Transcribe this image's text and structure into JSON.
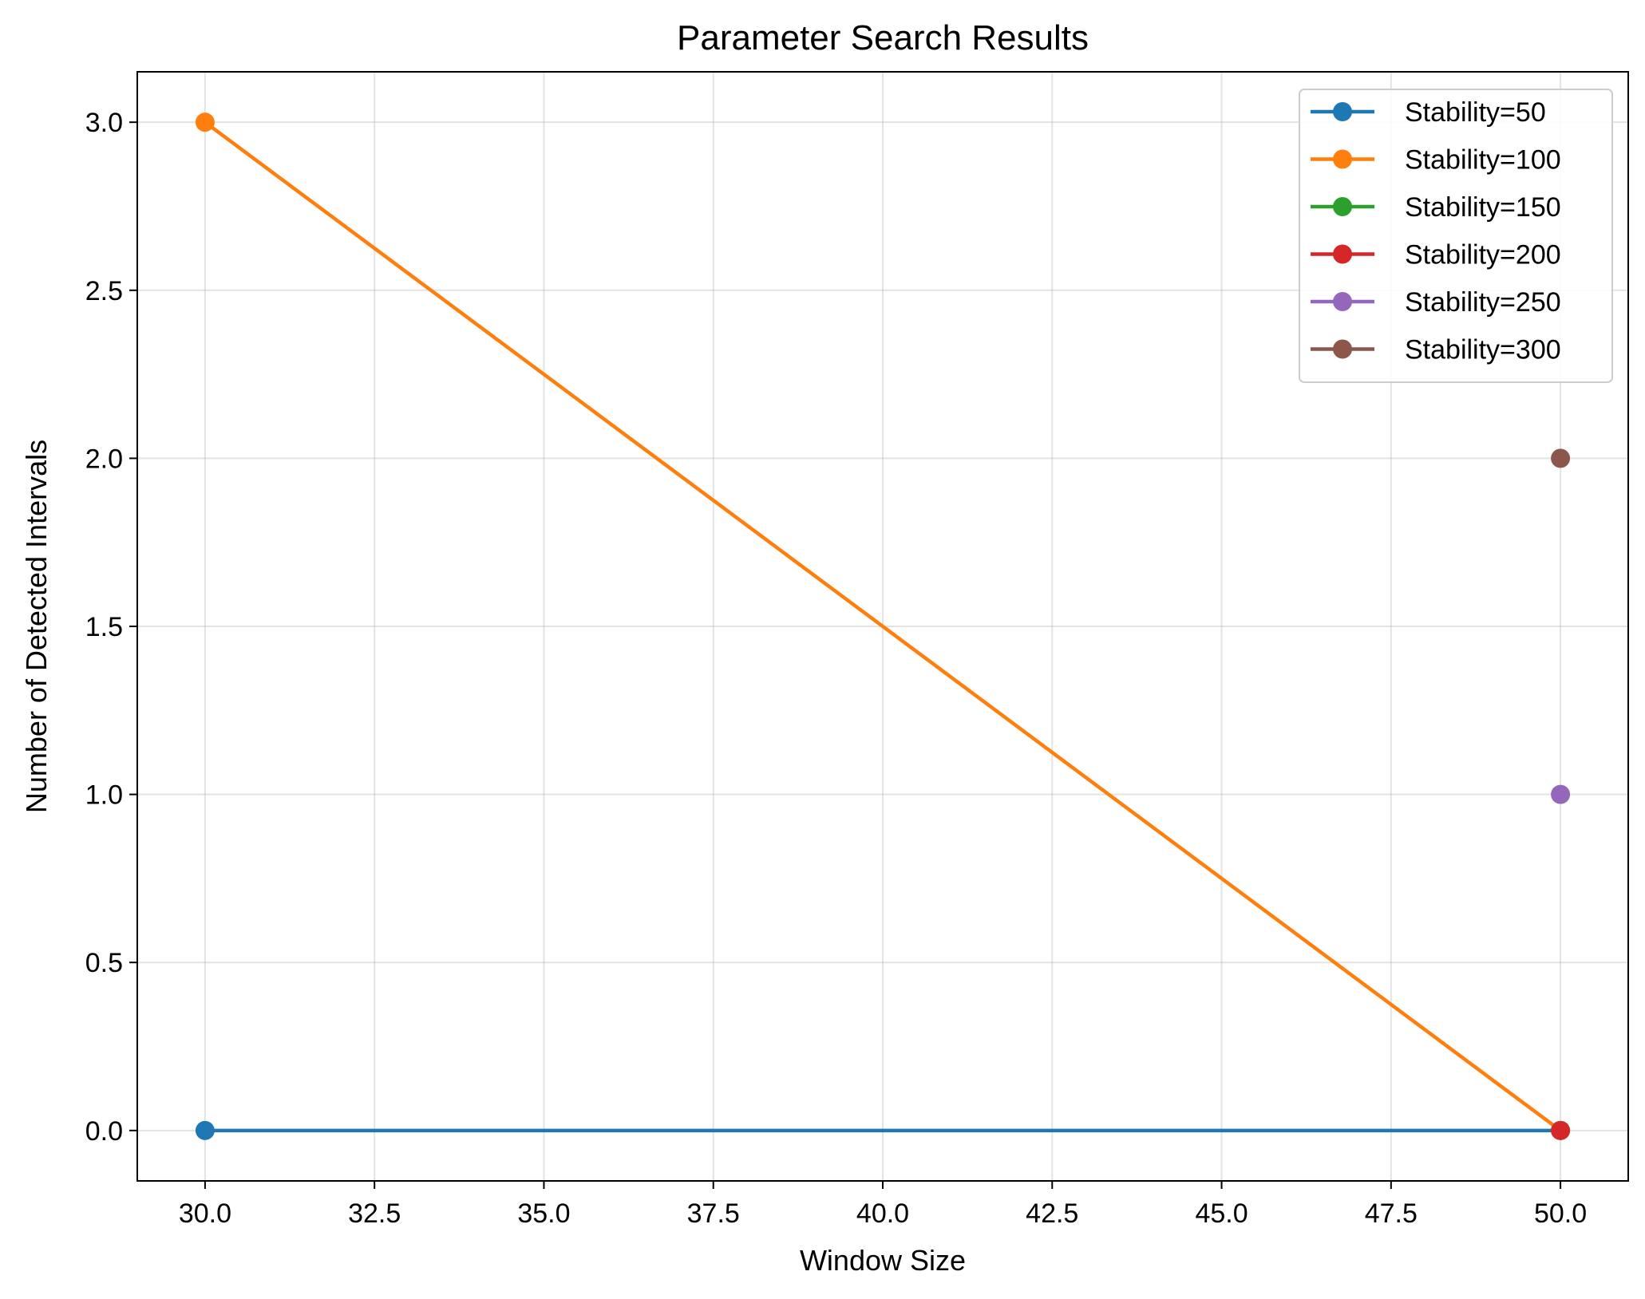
{
  "chart_data": {
    "type": "line",
    "title": "Parameter Search Results",
    "xlabel": "Window Size",
    "ylabel": "Number of Detected Intervals",
    "xlim": [
      29.0,
      51.0
    ],
    "ylim": [
      -0.15,
      3.15
    ],
    "x_ticks": [
      30.0,
      32.5,
      35.0,
      37.5,
      40.0,
      42.5,
      45.0,
      47.5,
      50.0
    ],
    "x_tick_labels": [
      "30.0",
      "32.5",
      "35.0",
      "37.5",
      "40.0",
      "42.5",
      "45.0",
      "47.5",
      "50.0"
    ],
    "y_ticks": [
      0.0,
      0.5,
      1.0,
      1.5,
      2.0,
      2.5,
      3.0
    ],
    "y_tick_labels": [
      "0.0",
      "0.5",
      "1.0",
      "1.5",
      "2.0",
      "2.5",
      "3.0"
    ],
    "grid": true,
    "legend_position": "top-right",
    "series": [
      {
        "name": "Stability=50",
        "color": "#1f77b4",
        "points": [
          [
            30,
            0
          ],
          [
            50,
            0
          ]
        ]
      },
      {
        "name": "Stability=100",
        "color": "#ff7f0e",
        "points": [
          [
            30,
            3
          ],
          [
            50,
            0
          ]
        ]
      },
      {
        "name": "Stability=150",
        "color": "#2ca02c",
        "points": [
          [
            50,
            0
          ]
        ]
      },
      {
        "name": "Stability=200",
        "color": "#d62728",
        "points": [
          [
            50,
            0
          ]
        ]
      },
      {
        "name": "Stability=250",
        "color": "#9467bd",
        "points": [
          [
            50,
            1
          ]
        ]
      },
      {
        "name": "Stability=300",
        "color": "#8c564b",
        "points": [
          [
            50,
            2
          ]
        ]
      }
    ]
  }
}
